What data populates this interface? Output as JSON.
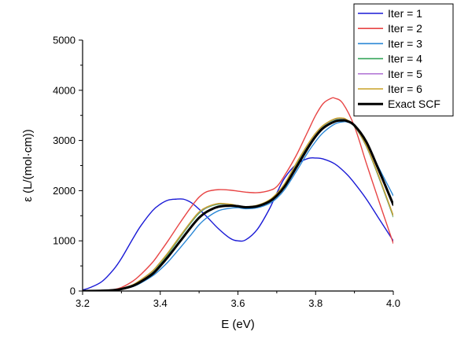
{
  "chart_data": {
    "type": "line",
    "title": "",
    "xlabel": "E (eV)",
    "ylabel": "ε (L/(mol·cm))",
    "xlim": [
      3.2,
      4.0
    ],
    "ylim": [
      0,
      5000
    ],
    "xticks": [
      "3.2",
      "3.4",
      "3.6",
      "3.8",
      "4.0"
    ],
    "yticks": [
      "0",
      "1000",
      "2000",
      "3000",
      "4000",
      "5000"
    ],
    "grid": false,
    "legend_position": "top-right",
    "series": [
      {
        "name": "Iter = 1",
        "color": "#1a1ad6",
        "x": [
          3.2,
          3.22,
          3.25,
          3.28,
          3.3,
          3.33,
          3.35,
          3.38,
          3.4,
          3.42,
          3.44,
          3.46,
          3.48,
          3.5,
          3.52,
          3.55,
          3.58,
          3.6,
          3.62,
          3.65,
          3.68,
          3.7,
          3.72,
          3.75,
          3.78,
          3.8,
          3.82,
          3.85,
          3.88,
          3.9,
          3.93,
          3.96,
          4.0
        ],
        "y": [
          20,
          70,
          190,
          430,
          650,
          1050,
          1300,
          1600,
          1730,
          1810,
          1830,
          1830,
          1760,
          1630,
          1480,
          1240,
          1050,
          1000,
          1020,
          1230,
          1620,
          1950,
          2250,
          2520,
          2640,
          2650,
          2630,
          2530,
          2330,
          2150,
          1840,
          1480,
          1000
        ]
      },
      {
        "name": "Iter = 2",
        "color": "#e84545",
        "x": [
          3.2,
          3.25,
          3.28,
          3.3,
          3.33,
          3.35,
          3.38,
          3.4,
          3.42,
          3.45,
          3.48,
          3.5,
          3.52,
          3.55,
          3.58,
          3.6,
          3.62,
          3.65,
          3.68,
          3.7,
          3.72,
          3.75,
          3.78,
          3.8,
          3.82,
          3.84,
          3.85,
          3.87,
          3.9,
          3.93,
          3.96,
          4.0
        ],
        "y": [
          0,
          10,
          30,
          70,
          200,
          330,
          570,
          780,
          1000,
          1350,
          1680,
          1870,
          1980,
          2020,
          2010,
          1990,
          1970,
          1960,
          2000,
          2080,
          2300,
          2700,
          3180,
          3500,
          3740,
          3840,
          3840,
          3740,
          3280,
          2560,
          1860,
          950
        ]
      },
      {
        "name": "Iter = 3",
        "color": "#2a87d6",
        "x": [
          3.2,
          3.25,
          3.28,
          3.3,
          3.33,
          3.35,
          3.38,
          3.4,
          3.42,
          3.45,
          3.48,
          3.5,
          3.52,
          3.55,
          3.58,
          3.6,
          3.62,
          3.65,
          3.68,
          3.7,
          3.72,
          3.75,
          3.78,
          3.8,
          3.82,
          3.85,
          3.87,
          3.88,
          3.9,
          3.93,
          3.96,
          4.0
        ],
        "y": [
          0,
          5,
          15,
          35,
          90,
          160,
          300,
          430,
          580,
          850,
          1130,
          1320,
          1460,
          1600,
          1650,
          1660,
          1640,
          1660,
          1740,
          1850,
          2020,
          2380,
          2760,
          2980,
          3160,
          3330,
          3370,
          3370,
          3300,
          3000,
          2500,
          1900
        ]
      },
      {
        "name": "Iter = 4",
        "color": "#36a65a",
        "x": [
          3.2,
          3.25,
          3.28,
          3.3,
          3.33,
          3.35,
          3.38,
          3.4,
          3.42,
          3.45,
          3.48,
          3.5,
          3.52,
          3.55,
          3.58,
          3.6,
          3.62,
          3.65,
          3.68,
          3.7,
          3.72,
          3.75,
          3.78,
          3.8,
          3.82,
          3.85,
          3.87,
          3.88,
          3.9,
          3.93,
          3.96,
          4.0
        ],
        "y": [
          0,
          6,
          20,
          45,
          120,
          210,
          380,
          550,
          740,
          1060,
          1370,
          1550,
          1660,
          1730,
          1720,
          1690,
          1670,
          1700,
          1800,
          1930,
          2120,
          2520,
          2900,
          3120,
          3290,
          3420,
          3430,
          3400,
          3280,
          2890,
          2320,
          1480
        ]
      },
      {
        "name": "Iter = 5",
        "color": "#b57ad6",
        "x": [
          3.2,
          3.25,
          3.28,
          3.3,
          3.33,
          3.35,
          3.38,
          3.4,
          3.42,
          3.45,
          3.48,
          3.5,
          3.52,
          3.55,
          3.58,
          3.6,
          3.62,
          3.65,
          3.68,
          3.7,
          3.72,
          3.75,
          3.78,
          3.8,
          3.82,
          3.85,
          3.87,
          3.88,
          3.9,
          3.93,
          3.96,
          4.0
        ],
        "y": [
          0,
          6,
          20,
          48,
          125,
          220,
          395,
          570,
          760,
          1080,
          1390,
          1570,
          1670,
          1740,
          1725,
          1695,
          1675,
          1705,
          1805,
          1940,
          2130,
          2540,
          2920,
          3140,
          3300,
          3430,
          3440,
          3410,
          3290,
          2900,
          2340,
          1500
        ]
      },
      {
        "name": "Iter = 6",
        "color": "#c9a227",
        "x": [
          3.2,
          3.25,
          3.28,
          3.3,
          3.33,
          3.35,
          3.38,
          3.4,
          3.42,
          3.45,
          3.48,
          3.5,
          3.52,
          3.55,
          3.58,
          3.6,
          3.62,
          3.65,
          3.68,
          3.7,
          3.72,
          3.75,
          3.78,
          3.8,
          3.82,
          3.85,
          3.87,
          3.88,
          3.9,
          3.93,
          3.96,
          4.0
        ],
        "y": [
          0,
          6,
          21,
          50,
          128,
          225,
          400,
          575,
          765,
          1085,
          1395,
          1575,
          1675,
          1745,
          1730,
          1700,
          1680,
          1710,
          1810,
          1945,
          2135,
          2545,
          2925,
          3145,
          3305,
          3435,
          3445,
          3415,
          3295,
          2905,
          2345,
          1505
        ]
      },
      {
        "name": "Exact SCF",
        "color": "#000000",
        "x": [
          3.2,
          3.25,
          3.28,
          3.3,
          3.33,
          3.35,
          3.38,
          3.4,
          3.42,
          3.45,
          3.48,
          3.5,
          3.52,
          3.55,
          3.58,
          3.6,
          3.62,
          3.65,
          3.68,
          3.7,
          3.72,
          3.75,
          3.78,
          3.8,
          3.82,
          3.85,
          3.87,
          3.88,
          3.9,
          3.93,
          3.96,
          4.0
        ],
        "y": [
          0,
          5,
          17,
          40,
          105,
          185,
          340,
          500,
          680,
          980,
          1280,
          1460,
          1580,
          1680,
          1700,
          1690,
          1670,
          1690,
          1780,
          1900,
          2080,
          2460,
          2850,
          3080,
          3250,
          3380,
          3400,
          3390,
          3300,
          2980,
          2460,
          1720
        ]
      }
    ]
  }
}
